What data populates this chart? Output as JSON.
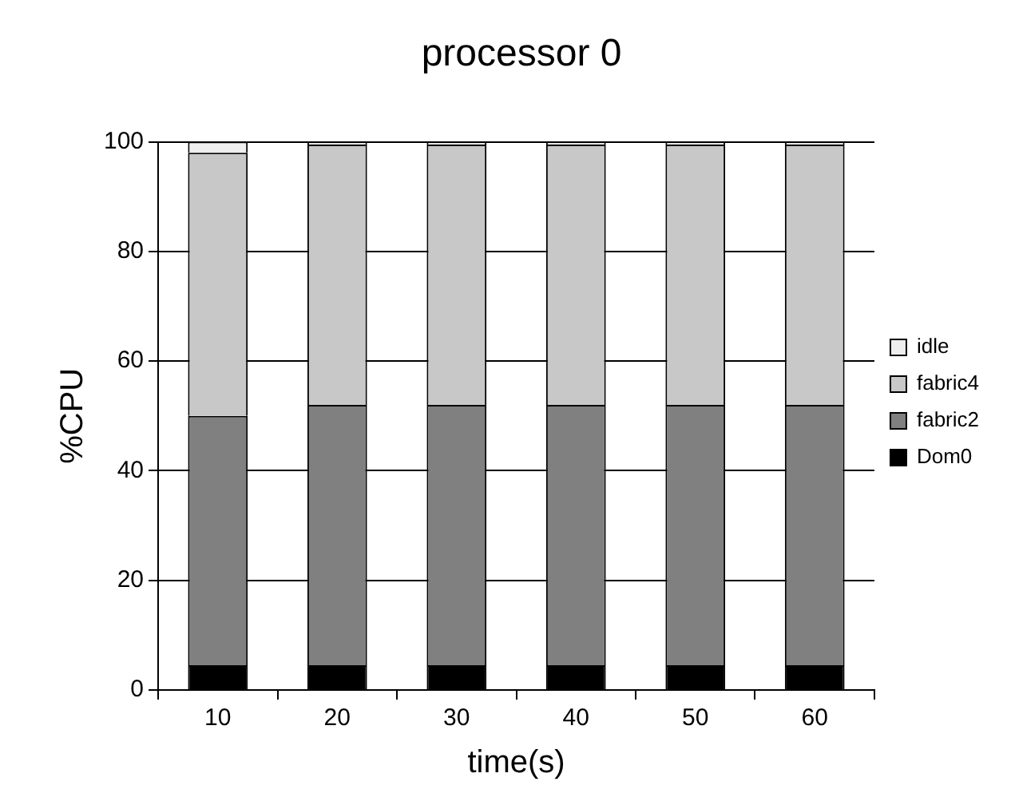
{
  "chart_data": {
    "type": "bar",
    "title": "processor 0",
    "xlabel": "time(s)",
    "ylabel": "%CPU",
    "categories": [
      "10",
      "20",
      "30",
      "40",
      "50",
      "60"
    ],
    "stacked": true,
    "series": [
      {
        "name": "Dom0",
        "color": "#000000",
        "values": [
          4.5,
          4.5,
          4.5,
          4.5,
          4.5,
          4.5
        ]
      },
      {
        "name": "fabric2",
        "color": "#808080",
        "values": [
          45.5,
          47.5,
          47.5,
          47.5,
          47.5,
          47.5
        ]
      },
      {
        "name": "fabric4",
        "color": "#c8c8c8",
        "values": [
          48,
          47.5,
          47.5,
          47.5,
          47.5,
          47.5
        ]
      },
      {
        "name": "idle",
        "color": "#eeeeee",
        "values": [
          2,
          0.5,
          0.5,
          0.5,
          0.5,
          0.5
        ]
      }
    ],
    "ylim": [
      0,
      100
    ],
    "yticks": [
      0,
      20,
      40,
      60,
      80,
      100
    ],
    "grid": "y",
    "legend": "right"
  }
}
